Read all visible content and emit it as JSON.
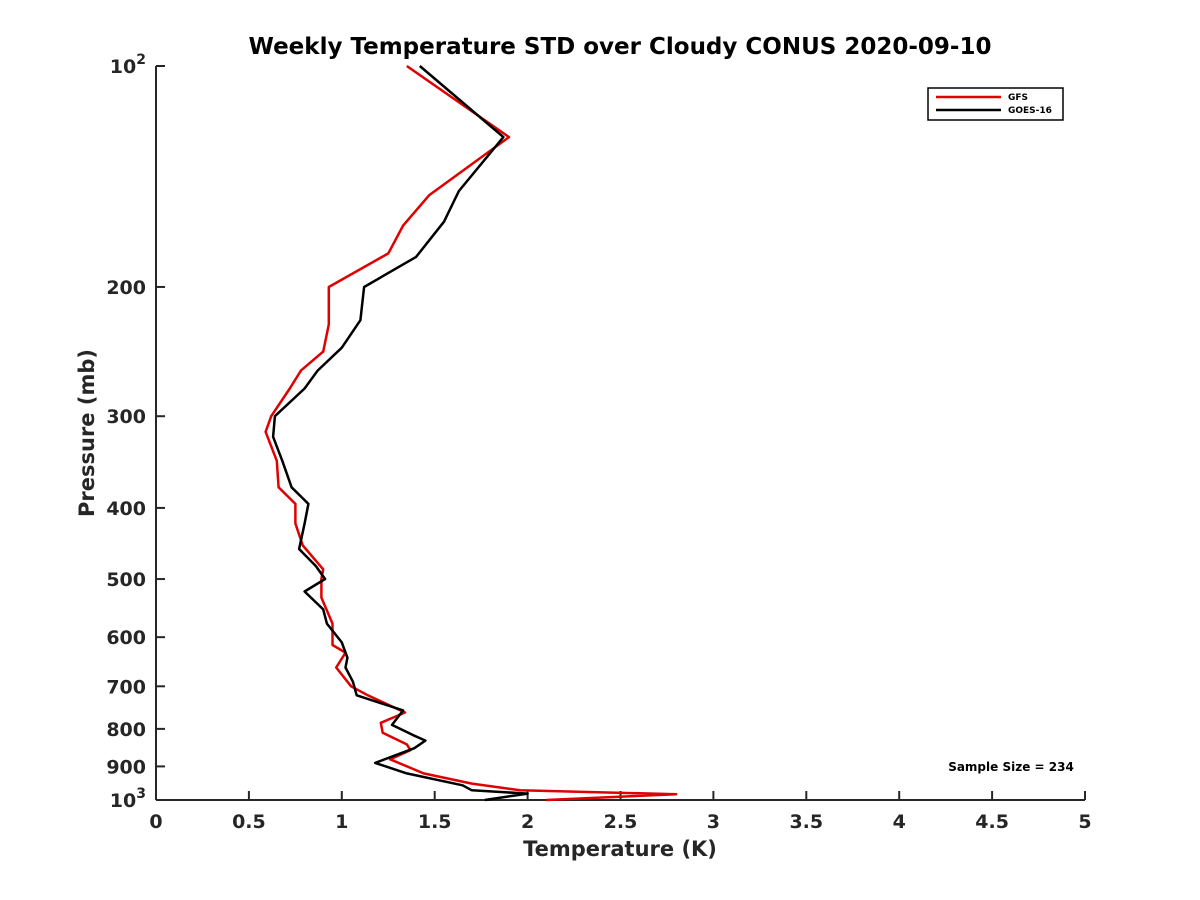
{
  "chart_data": {
    "type": "line",
    "title": "Weekly Temperature STD over Cloudy CONUS 2020-09-10",
    "xlabel": "Temperature (K)",
    "ylabel": "Pressure (mb)",
    "xlim": [
      0,
      5
    ],
    "ylim": [
      100,
      1000
    ],
    "y_scale": "log",
    "y_reversed": true,
    "grid": false,
    "legend_position": "top-right",
    "x_ticks": [
      0,
      0.5,
      1,
      1.5,
      2,
      2.5,
      3,
      3.5,
      4,
      4.5,
      5
    ],
    "x_tick_labels": [
      "0",
      "0.5",
      "1",
      "1.5",
      "2",
      "2.5",
      "3",
      "3.5",
      "4",
      "4.5",
      "5"
    ],
    "y_ticks": [
      100,
      200,
      300,
      400,
      500,
      600,
      700,
      800,
      900,
      1000
    ],
    "y_tick_labels": [
      {
        "base": "10",
        "exp": "2"
      },
      {
        "base": "200",
        "exp": ""
      },
      {
        "base": "300",
        "exp": ""
      },
      {
        "base": "400",
        "exp": ""
      },
      {
        "base": "500",
        "exp": ""
      },
      {
        "base": "600",
        "exp": ""
      },
      {
        "base": "700",
        "exp": ""
      },
      {
        "base": "800",
        "exp": ""
      },
      {
        "base": "900",
        "exp": ""
      },
      {
        "base": "10",
        "exp": "3"
      }
    ],
    "annotation": "Sample Size = 234",
    "series": [
      {
        "name": "GFS",
        "color": "#e00000",
        "points": [
          [
            1.35,
            100
          ],
          [
            1.9,
            125
          ],
          [
            1.47,
            150
          ],
          [
            1.33,
            165
          ],
          [
            1.25,
            180
          ],
          [
            0.93,
            200
          ],
          [
            0.93,
            225
          ],
          [
            0.9,
            245
          ],
          [
            0.78,
            260
          ],
          [
            0.72,
            275
          ],
          [
            0.62,
            300
          ],
          [
            0.59,
            315
          ],
          [
            0.65,
            345
          ],
          [
            0.66,
            375
          ],
          [
            0.75,
            395
          ],
          [
            0.75,
            420
          ],
          [
            0.79,
            450
          ],
          [
            0.9,
            485
          ],
          [
            0.89,
            500
          ],
          [
            0.89,
            530
          ],
          [
            0.95,
            575
          ],
          [
            0.95,
            615
          ],
          [
            1.02,
            630
          ],
          [
            0.97,
            660
          ],
          [
            1.05,
            700
          ],
          [
            1.14,
            720
          ],
          [
            1.34,
            760
          ],
          [
            1.21,
            785
          ],
          [
            1.22,
            810
          ],
          [
            1.35,
            840
          ],
          [
            1.37,
            855
          ],
          [
            1.26,
            880
          ],
          [
            1.44,
            920
          ],
          [
            1.7,
            950
          ],
          [
            1.96,
            970
          ],
          [
            2.8,
            982
          ],
          [
            2.1,
            1000
          ]
        ]
      },
      {
        "name": "GOES-16",
        "color": "#000000",
        "points": [
          [
            1.42,
            100
          ],
          [
            1.87,
            125
          ],
          [
            1.63,
            148
          ],
          [
            1.55,
            163
          ],
          [
            1.4,
            182
          ],
          [
            1.12,
            200
          ],
          [
            1.1,
            222
          ],
          [
            1.0,
            242
          ],
          [
            0.87,
            260
          ],
          [
            0.8,
            275
          ],
          [
            0.64,
            300
          ],
          [
            0.63,
            320
          ],
          [
            0.68,
            345
          ],
          [
            0.73,
            375
          ],
          [
            0.82,
            395
          ],
          [
            0.8,
            420
          ],
          [
            0.77,
            455
          ],
          [
            0.86,
            480
          ],
          [
            0.91,
            500
          ],
          [
            0.8,
            520
          ],
          [
            0.9,
            550
          ],
          [
            0.92,
            575
          ],
          [
            1.0,
            610
          ],
          [
            1.03,
            640
          ],
          [
            1.02,
            660
          ],
          [
            1.06,
            690
          ],
          [
            1.08,
            720
          ],
          [
            1.33,
            755
          ],
          [
            1.27,
            790
          ],
          [
            1.38,
            815
          ],
          [
            1.45,
            830
          ],
          [
            1.39,
            850
          ],
          [
            1.18,
            890
          ],
          [
            1.35,
            920
          ],
          [
            1.65,
            955
          ],
          [
            1.7,
            970
          ],
          [
            2.0,
            980
          ],
          [
            1.77,
            1000
          ]
        ]
      }
    ]
  }
}
